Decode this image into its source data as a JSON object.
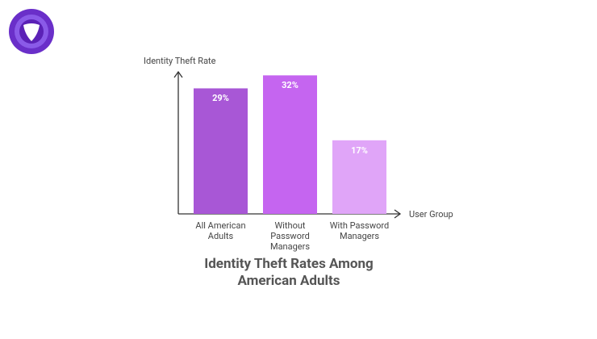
{
  "chart_data": {
    "type": "bar",
    "title": "Identity Theft Rates Among American Adults",
    "y_label": "Identity Theft Rate",
    "x_label": "User Group",
    "categories": [
      "All American Adults",
      "Without Password Managers",
      "With Password Managers"
    ],
    "values": [
      29,
      32,
      17
    ],
    "value_labels": [
      "29%",
      "32%",
      "17%"
    ],
    "colors": [
      "#a857d6",
      "#c565f0",
      "#e0a5f8"
    ],
    "ylim": [
      0,
      33
    ]
  }
}
